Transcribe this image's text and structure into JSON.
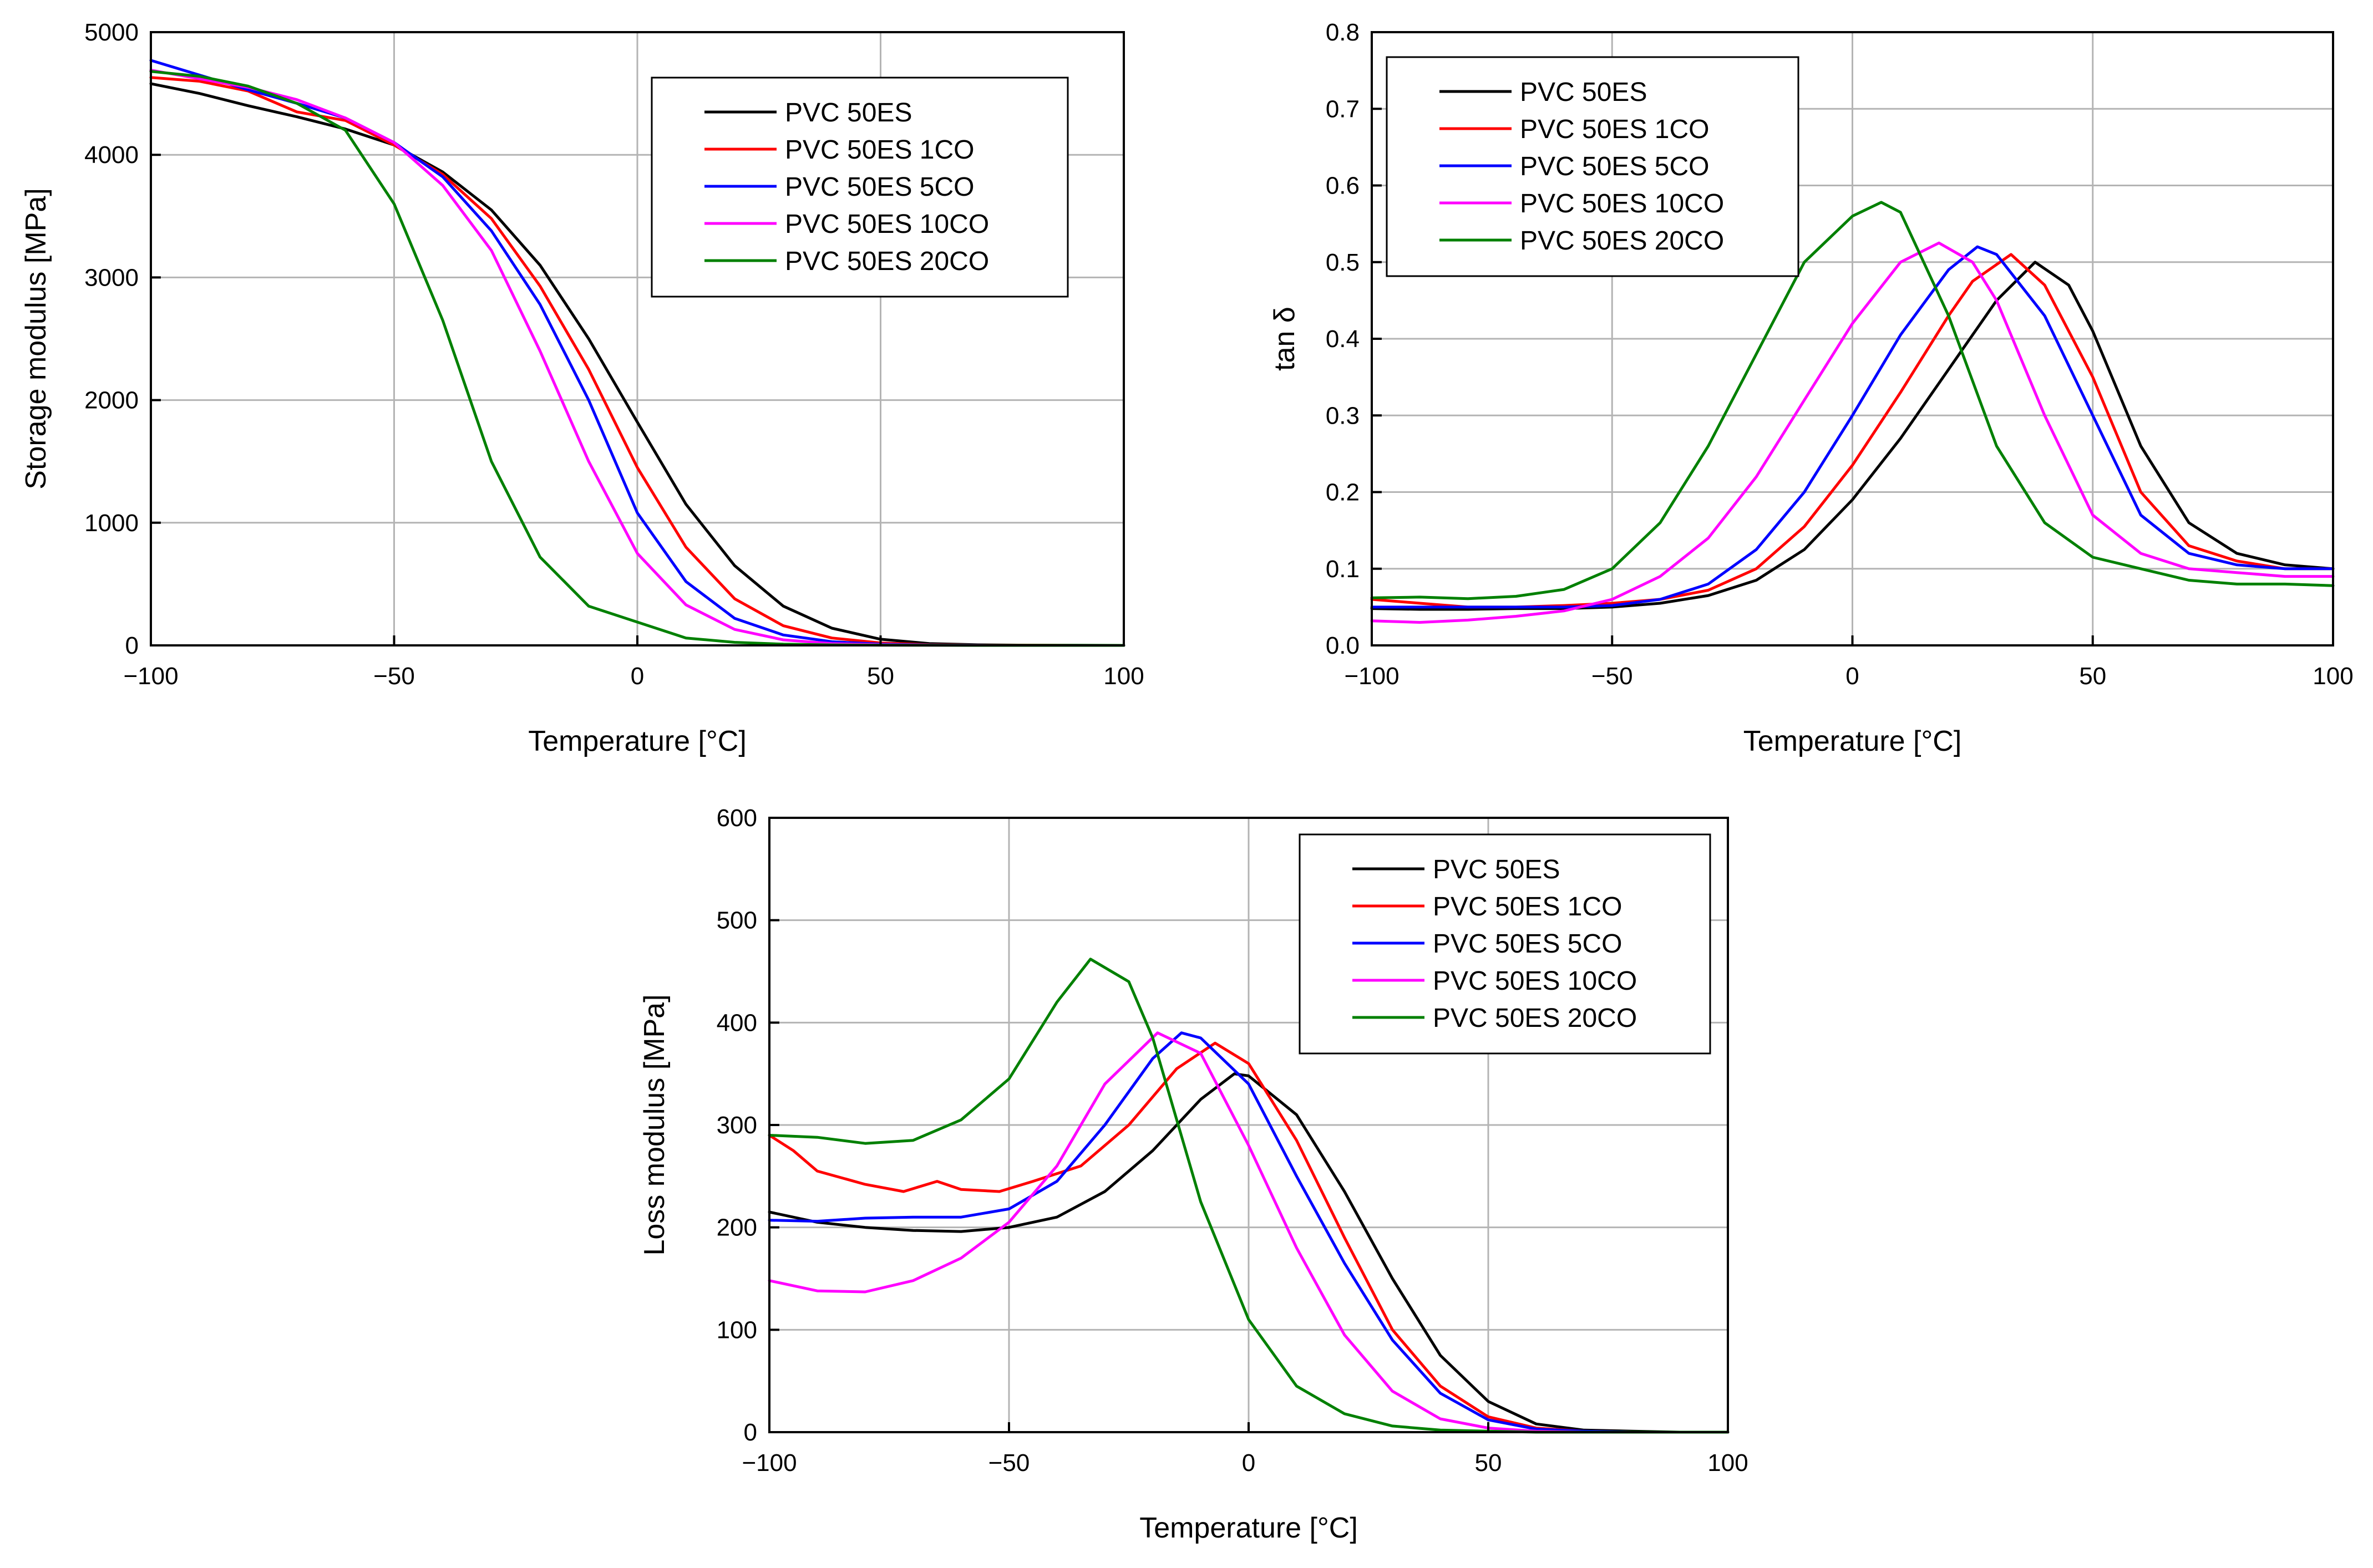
{
  "colors": {
    "PVC 50ES": "#000000",
    "PVC 50ES 1CO": "#ff0000",
    "PVC 50ES 5CO": "#0000ff",
    "PVC 50ES 10CO": "#ff00ff",
    "PVC 50ES 20CO": "#008000",
    "grid": "#b4b4b4"
  },
  "chart_data": [
    {
      "id": "storage",
      "type": "line",
      "xlabel": "Temperature [°C]",
      "ylabel": "Storage modulus [MPa]",
      "xlim": [
        -100,
        100
      ],
      "ylim": [
        0,
        5000
      ],
      "xticks": [
        -100,
        -50,
        0,
        50,
        100
      ],
      "xtick_labels": [
        "−100",
        "−50",
        "0",
        "50",
        "100"
      ],
      "yticks": [
        0,
        1000,
        2000,
        3000,
        4000,
        5000
      ],
      "ytick_labels": [
        "0",
        "1000",
        "2000",
        "3000",
        "4000",
        "5000"
      ],
      "grid": true,
      "legend": "top-right",
      "series": [
        {
          "name": "PVC 50ES",
          "x": [
            -100,
            -90,
            -80,
            -70,
            -60,
            -50,
            -40,
            -30,
            -20,
            -10,
            0,
            10,
            20,
            30,
            40,
            50,
            60,
            70,
            80,
            90,
            100
          ],
          "y": [
            4580,
            4500,
            4400,
            4310,
            4210,
            4080,
            3860,
            3550,
            3100,
            2500,
            1820,
            1150,
            650,
            320,
            140,
            50,
            15,
            5,
            2,
            1,
            0
          ]
        },
        {
          "name": "PVC 50ES 1CO",
          "x": [
            -100,
            -90,
            -80,
            -70,
            -60,
            -50,
            -40,
            -30,
            -20,
            -10,
            0,
            10,
            20,
            30,
            40,
            50,
            60,
            70,
            80,
            90,
            100
          ],
          "y": [
            4630,
            4600,
            4520,
            4350,
            4280,
            4080,
            3840,
            3480,
            2930,
            2250,
            1450,
            800,
            380,
            160,
            60,
            20,
            6,
            2,
            1,
            0,
            0
          ]
        },
        {
          "name": "PVC 50ES 5CO",
          "x": [
            -100,
            -90,
            -80,
            -70,
            -60,
            -50,
            -40,
            -30,
            -20,
            -10,
            0,
            10,
            20,
            30,
            40,
            50,
            60,
            70,
            80,
            90,
            100
          ],
          "y": [
            4770,
            4650,
            4530,
            4420,
            4300,
            4100,
            3820,
            3380,
            2780,
            2000,
            1080,
            520,
            220,
            85,
            30,
            10,
            3,
            1,
            0,
            0,
            0
          ]
        },
        {
          "name": "PVC 50ES 10CO",
          "x": [
            -100,
            -90,
            -80,
            -70,
            -60,
            -50,
            -40,
            -30,
            -20,
            -10,
            0,
            10,
            20,
            30,
            40,
            50,
            60,
            70,
            80,
            90,
            100
          ],
          "y": [
            4690,
            4620,
            4550,
            4450,
            4300,
            4100,
            3750,
            3220,
            2400,
            1500,
            750,
            330,
            130,
            45,
            15,
            5,
            2,
            1,
            0,
            0,
            0
          ]
        },
        {
          "name": "PVC 50ES 20CO",
          "x": [
            -100,
            -90,
            -80,
            -70,
            -60,
            -50,
            -40,
            -30,
            -20,
            -10,
            0,
            10,
            20,
            30,
            40,
            50,
            60,
            70,
            80,
            90,
            100
          ],
          "y": [
            4680,
            4640,
            4560,
            4420,
            4200,
            3600,
            2650,
            1500,
            720,
            320,
            190,
            60,
            25,
            10,
            4,
            2,
            1,
            0,
            0,
            0,
            0
          ]
        }
      ]
    },
    {
      "id": "tandelta",
      "type": "line",
      "xlabel": "Temperature [°C]",
      "ylabel": "tan δ",
      "xlim": [
        -100,
        100
      ],
      "ylim": [
        0,
        0.8
      ],
      "xticks": [
        -100,
        -50,
        0,
        50,
        100
      ],
      "xtick_labels": [
        "−100",
        "−50",
        "0",
        "50",
        "100"
      ],
      "yticks": [
        0,
        0.1,
        0.2,
        0.3,
        0.4,
        0.5,
        0.6,
        0.7,
        0.8
      ],
      "ytick_labels": [
        "0.0",
        "0.1",
        "0.2",
        "0.3",
        "0.4",
        "0.5",
        "0.6",
        "0.7",
        "0.8"
      ],
      "grid": true,
      "legend": "top-left",
      "series": [
        {
          "name": "PVC 50ES",
          "x": [
            -100,
            -90,
            -80,
            -70,
            -60,
            -50,
            -40,
            -30,
            -20,
            -10,
            0,
            10,
            20,
            30,
            38,
            45,
            50,
            60,
            70,
            80,
            90,
            100
          ],
          "y": [
            0.048,
            0.047,
            0.047,
            0.048,
            0.048,
            0.05,
            0.055,
            0.065,
            0.085,
            0.125,
            0.19,
            0.27,
            0.36,
            0.45,
            0.5,
            0.47,
            0.41,
            0.26,
            0.16,
            0.12,
            0.105,
            0.1
          ]
        },
        {
          "name": "PVC 50ES 1CO",
          "x": [
            -100,
            -90,
            -80,
            -70,
            -60,
            -50,
            -40,
            -30,
            -20,
            -10,
            0,
            10,
            20,
            25,
            33,
            40,
            50,
            60,
            70,
            80,
            90,
            100
          ],
          "y": [
            0.06,
            0.055,
            0.05,
            0.05,
            0.052,
            0.055,
            0.06,
            0.072,
            0.1,
            0.155,
            0.235,
            0.33,
            0.43,
            0.475,
            0.51,
            0.47,
            0.35,
            0.2,
            0.13,
            0.11,
            0.1,
            0.1
          ]
        },
        {
          "name": "PVC 50ES 5CO",
          "x": [
            -100,
            -90,
            -80,
            -70,
            -60,
            -50,
            -40,
            -30,
            -20,
            -10,
            0,
            10,
            20,
            26,
            30,
            40,
            50,
            60,
            70,
            80,
            90,
            100
          ],
          "y": [
            0.05,
            0.05,
            0.05,
            0.05,
            0.05,
            0.052,
            0.06,
            0.08,
            0.125,
            0.2,
            0.3,
            0.405,
            0.49,
            0.52,
            0.51,
            0.43,
            0.3,
            0.17,
            0.12,
            0.105,
            0.1,
            0.1
          ]
        },
        {
          "name": "PVC 50ES 10CO",
          "x": [
            -100,
            -90,
            -80,
            -70,
            -60,
            -50,
            -40,
            -30,
            -20,
            -10,
            0,
            10,
            18,
            25,
            30,
            40,
            50,
            60,
            70,
            80,
            90,
            100
          ],
          "y": [
            0.032,
            0.03,
            0.033,
            0.038,
            0.045,
            0.06,
            0.09,
            0.14,
            0.22,
            0.32,
            0.42,
            0.5,
            0.525,
            0.5,
            0.45,
            0.3,
            0.17,
            0.12,
            0.1,
            0.095,
            0.09,
            0.09
          ]
        },
        {
          "name": "PVC 50ES 20CO",
          "x": [
            -100,
            -90,
            -80,
            -70,
            -60,
            -50,
            -40,
            -30,
            -20,
            -10,
            0,
            6,
            10,
            20,
            30,
            40,
            50,
            60,
            70,
            80,
            90,
            100
          ],
          "y": [
            0.062,
            0.063,
            0.061,
            0.064,
            0.073,
            0.1,
            0.16,
            0.26,
            0.38,
            0.5,
            0.56,
            0.578,
            0.565,
            0.43,
            0.26,
            0.16,
            0.115,
            0.1,
            0.085,
            0.08,
            0.08,
            0.078
          ]
        }
      ]
    },
    {
      "id": "loss",
      "type": "line",
      "xlabel": "Temperature [°C]",
      "ylabel": "Loss modulus [MPa]",
      "xlim": [
        -100,
        100
      ],
      "ylim": [
        0,
        600
      ],
      "xticks": [
        -100,
        -50,
        0,
        50,
        100
      ],
      "xtick_labels": [
        "−100",
        "−50",
        "0",
        "50",
        "100"
      ],
      "yticks": [
        0,
        100,
        200,
        300,
        400,
        500,
        600
      ],
      "ytick_labels": [
        "0",
        "100",
        "200",
        "300",
        "400",
        "500",
        "600"
      ],
      "grid": true,
      "legend": "top-right",
      "series": [
        {
          "name": "PVC 50ES",
          "x": [
            -100,
            -90,
            -80,
            -70,
            -60,
            -50,
            -40,
            -30,
            -20,
            -10,
            -3,
            0,
            10,
            20,
            30,
            40,
            50,
            60,
            70,
            80,
            90,
            100
          ],
          "y": [
            215,
            205,
            200,
            197,
            196,
            200,
            210,
            235,
            275,
            325,
            350,
            348,
            310,
            235,
            150,
            75,
            30,
            8,
            2,
            1,
            0,
            0
          ]
        },
        {
          "name": "PVC 50ES 1CO",
          "x": [
            -100,
            -95,
            -90,
            -80,
            -72,
            -65,
            -60,
            -52,
            -45,
            -35,
            -25,
            -15,
            -7,
            0,
            10,
            20,
            30,
            40,
            50,
            60,
            70,
            80,
            90,
            100
          ],
          "y": [
            290,
            275,
            255,
            242,
            235,
            245,
            237,
            235,
            245,
            260,
            300,
            355,
            380,
            360,
            285,
            190,
            100,
            45,
            15,
            4,
            1,
            0,
            0,
            0
          ]
        },
        {
          "name": "PVC 50ES 5CO",
          "x": [
            -100,
            -90,
            -80,
            -70,
            -60,
            -50,
            -40,
            -30,
            -20,
            -14,
            -10,
            0,
            10,
            20,
            30,
            40,
            50,
            60,
            70,
            80,
            90,
            100
          ],
          "y": [
            207,
            206,
            209,
            210,
            210,
            218,
            245,
            300,
            365,
            390,
            385,
            340,
            250,
            165,
            90,
            38,
            12,
            3,
            1,
            0,
            0,
            0
          ]
        },
        {
          "name": "PVC 50ES 10CO",
          "x": [
            -100,
            -90,
            -80,
            -70,
            -60,
            -50,
            -40,
            -30,
            -19,
            -10,
            0,
            10,
            20,
            30,
            40,
            50,
            60,
            70,
            80,
            90,
            100
          ],
          "y": [
            148,
            138,
            137,
            148,
            170,
            205,
            260,
            340,
            390,
            370,
            280,
            180,
            95,
            40,
            13,
            4,
            1,
            0,
            0,
            0,
            0
          ]
        },
        {
          "name": "PVC 50ES 20CO",
          "x": [
            -100,
            -90,
            -80,
            -70,
            -60,
            -50,
            -40,
            -33,
            -25,
            -20,
            -10,
            0,
            10,
            20,
            30,
            40,
            50,
            60,
            70,
            80,
            90,
            100
          ],
          "y": [
            290,
            288,
            282,
            285,
            305,
            345,
            420,
            462,
            440,
            385,
            225,
            110,
            45,
            18,
            6,
            2,
            1,
            0,
            0,
            0,
            0,
            0
          ]
        }
      ]
    }
  ]
}
